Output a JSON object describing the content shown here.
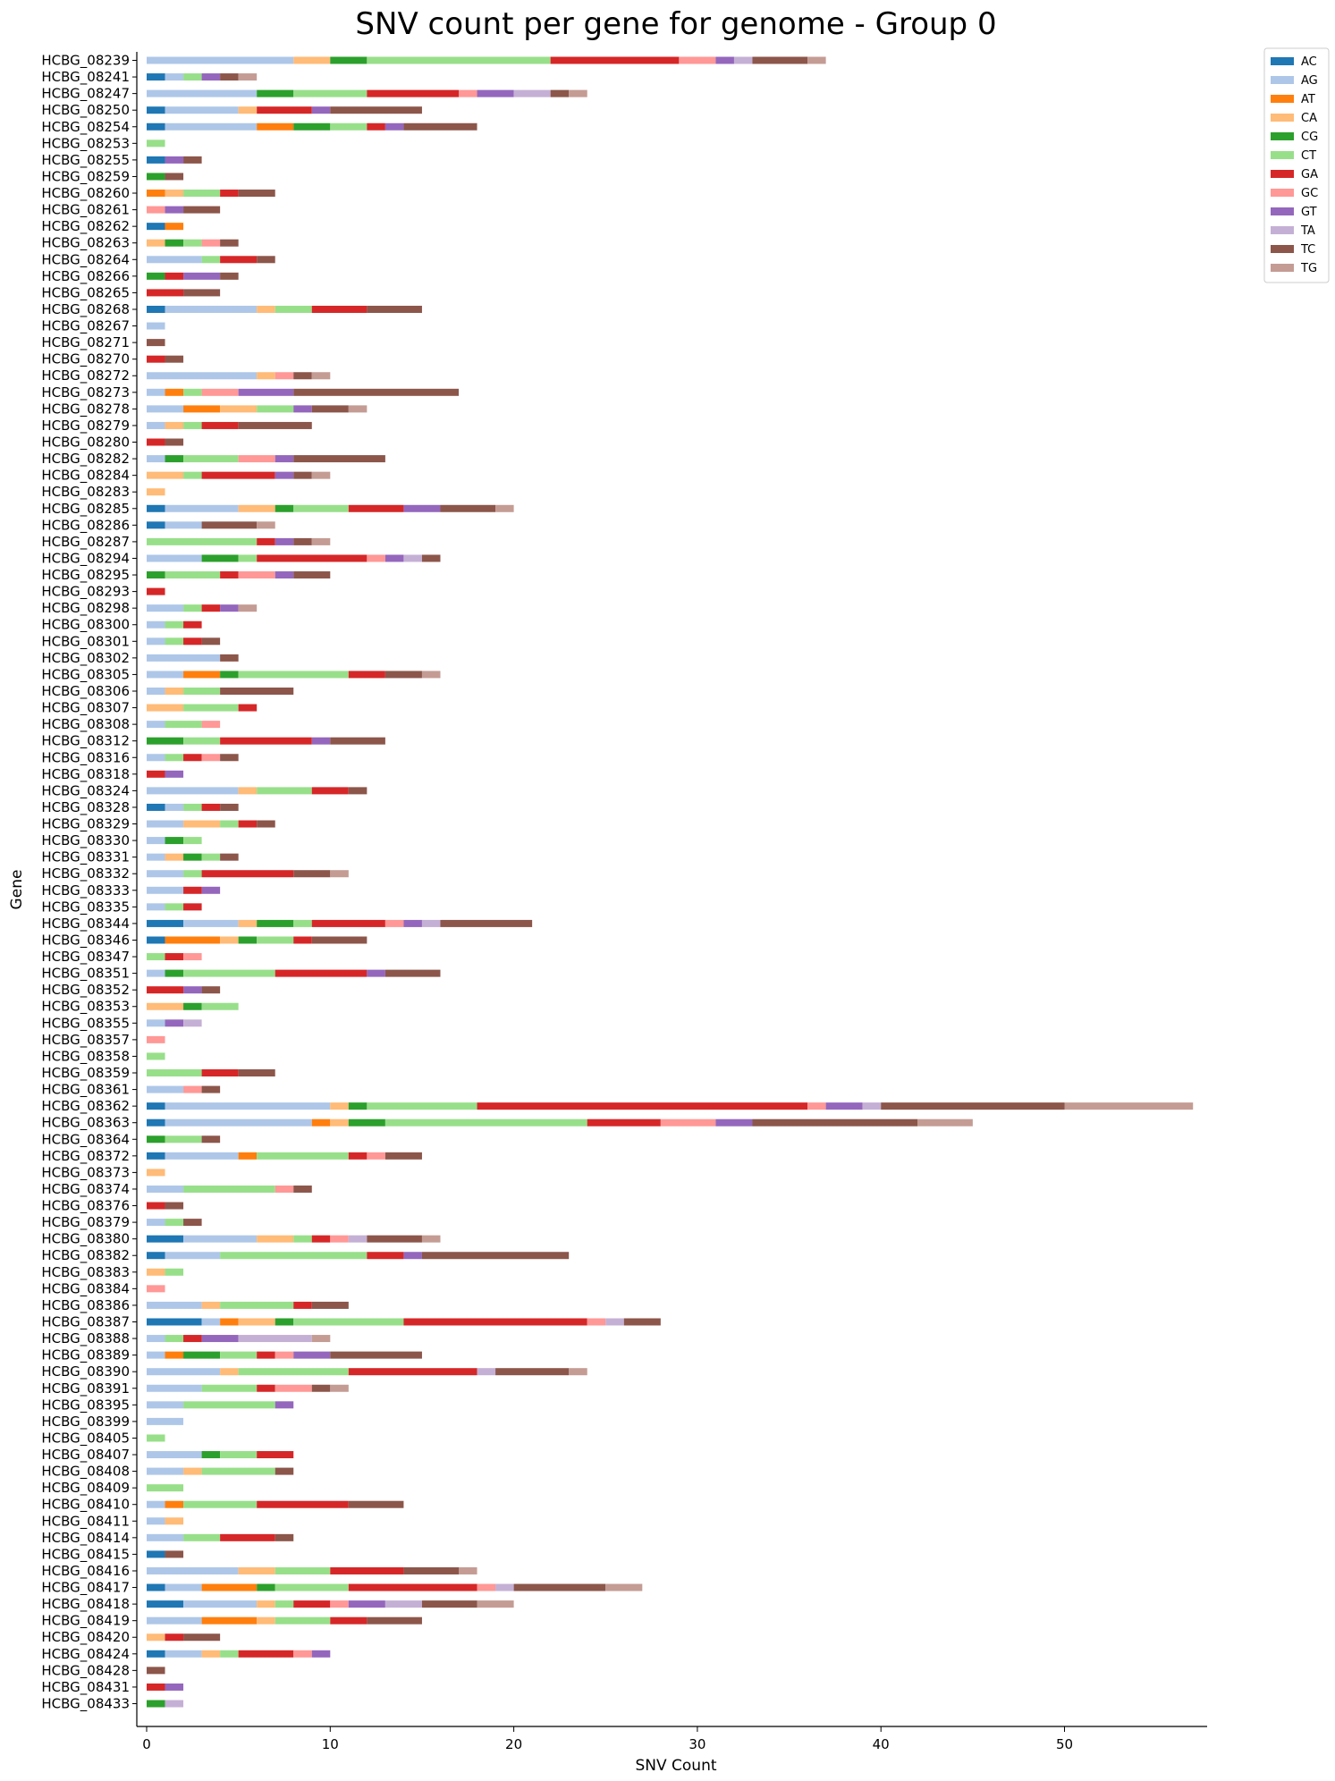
{
  "chart_data": {
    "type": "bar",
    "orientation": "horizontal",
    "stacked": true,
    "title": "SNV count per gene for genome - Group 0",
    "xlabel": "SNV Count",
    "ylabel": "Gene",
    "xlim": [
      0,
      57
    ],
    "xticks": [
      0,
      10,
      20,
      30,
      40,
      50
    ],
    "grid": false,
    "legend_position": "upper-right outside",
    "categories": [
      "HCBG_08239",
      "HCBG_08241",
      "HCBG_08247",
      "HCBG_08250",
      "HCBG_08254",
      "HCBG_08253",
      "HCBG_08255",
      "HCBG_08259",
      "HCBG_08260",
      "HCBG_08261",
      "HCBG_08262",
      "HCBG_08263",
      "HCBG_08264",
      "HCBG_08266",
      "HCBG_08265",
      "HCBG_08268",
      "HCBG_08267",
      "HCBG_08271",
      "HCBG_08270",
      "HCBG_08272",
      "HCBG_08273",
      "HCBG_08278",
      "HCBG_08279",
      "HCBG_08280",
      "HCBG_08282",
      "HCBG_08284",
      "HCBG_08283",
      "HCBG_08285",
      "HCBG_08286",
      "HCBG_08287",
      "HCBG_08294",
      "HCBG_08295",
      "HCBG_08293",
      "HCBG_08298",
      "HCBG_08300",
      "HCBG_08301",
      "HCBG_08302",
      "HCBG_08305",
      "HCBG_08306",
      "HCBG_08307",
      "HCBG_08308",
      "HCBG_08312",
      "HCBG_08316",
      "HCBG_08318",
      "HCBG_08324",
      "HCBG_08328",
      "HCBG_08329",
      "HCBG_08330",
      "HCBG_08331",
      "HCBG_08332",
      "HCBG_08333",
      "HCBG_08335",
      "HCBG_08344",
      "HCBG_08346",
      "HCBG_08347",
      "HCBG_08351",
      "HCBG_08352",
      "HCBG_08353",
      "HCBG_08355",
      "HCBG_08357",
      "HCBG_08358",
      "HCBG_08359",
      "HCBG_08361",
      "HCBG_08362",
      "HCBG_08363",
      "HCBG_08364",
      "HCBG_08372",
      "HCBG_08373",
      "HCBG_08374",
      "HCBG_08376",
      "HCBG_08379",
      "HCBG_08380",
      "HCBG_08382",
      "HCBG_08383",
      "HCBG_08384",
      "HCBG_08386",
      "HCBG_08387",
      "HCBG_08388",
      "HCBG_08389",
      "HCBG_08390",
      "HCBG_08391",
      "HCBG_08395",
      "HCBG_08399",
      "HCBG_08405",
      "HCBG_08407",
      "HCBG_08408",
      "HCBG_08409",
      "HCBG_08410",
      "HCBG_08411",
      "HCBG_08414",
      "HCBG_08415",
      "HCBG_08416",
      "HCBG_08417",
      "HCBG_08418",
      "HCBG_08419",
      "HCBG_08420",
      "HCBG_08424",
      "HCBG_08428",
      "HCBG_08431",
      "HCBG_08433"
    ],
    "series": [
      {
        "name": "AC",
        "color": "#1f77b4",
        "values": [
          0,
          1,
          0,
          1,
          1,
          0,
          1,
          0,
          0,
          0,
          1,
          0,
          0,
          0,
          0,
          1,
          0,
          0,
          0,
          0,
          0,
          0,
          0,
          0,
          0,
          0,
          0,
          1,
          1,
          0,
          0,
          0,
          0,
          0,
          0,
          0,
          0,
          0,
          0,
          0,
          0,
          0,
          0,
          0,
          0,
          1,
          0,
          0,
          0,
          0,
          0,
          0,
          2,
          1,
          0,
          0,
          0,
          0,
          0,
          0,
          0,
          0,
          0,
          1,
          1,
          0,
          1,
          0,
          0,
          0,
          0,
          2,
          1,
          0,
          0,
          0,
          3,
          0,
          0,
          0,
          0,
          0,
          0,
          0,
          0,
          0,
          0,
          0,
          0,
          0,
          1,
          0,
          1,
          2,
          0,
          0,
          1,
          0,
          0,
          0
        ]
      },
      {
        "name": "AG",
        "color": "#aec7e8",
        "values": [
          8,
          1,
          6,
          4,
          5,
          0,
          0,
          0,
          0,
          0,
          0,
          0,
          3,
          0,
          0,
          5,
          1,
          0,
          0,
          6,
          1,
          2,
          1,
          0,
          1,
          0,
          0,
          4,
          2,
          0,
          3,
          0,
          0,
          2,
          1,
          1,
          4,
          2,
          1,
          0,
          1,
          0,
          1,
          0,
          5,
          1,
          2,
          1,
          1,
          2,
          2,
          1,
          3,
          0,
          0,
          1,
          0,
          0,
          1,
          0,
          0,
          0,
          2,
          9,
          8,
          0,
          4,
          0,
          2,
          0,
          1,
          4,
          3,
          0,
          0,
          3,
          1,
          1,
          1,
          4,
          3,
          2,
          2,
          0,
          3,
          2,
          0,
          1,
          1,
          2,
          0,
          5,
          2,
          4,
          3,
          0,
          2,
          0,
          0,
          0
        ]
      },
      {
        "name": "AT",
        "color": "#ff7f0e",
        "values": [
          0,
          0,
          0,
          0,
          2,
          0,
          0,
          0,
          1,
          0,
          1,
          0,
          0,
          0,
          0,
          0,
          0,
          0,
          0,
          0,
          1,
          2,
          0,
          0,
          0,
          0,
          0,
          0,
          0,
          0,
          0,
          0,
          0,
          0,
          0,
          0,
          0,
          2,
          0,
          0,
          0,
          0,
          0,
          0,
          0,
          0,
          0,
          0,
          0,
          0,
          0,
          0,
          0,
          3,
          0,
          0,
          0,
          0,
          0,
          0,
          0,
          0,
          0,
          0,
          1,
          0,
          1,
          0,
          0,
          0,
          0,
          0,
          0,
          0,
          0,
          0,
          1,
          0,
          1,
          0,
          0,
          0,
          0,
          0,
          0,
          0,
          0,
          1,
          0,
          0,
          0,
          0,
          3,
          0,
          3,
          0,
          0,
          0,
          0,
          0
        ]
      },
      {
        "name": "CA",
        "color": "#ffbb78",
        "values": [
          2,
          0,
          0,
          1,
          0,
          0,
          0,
          0,
          1,
          0,
          0,
          1,
          0,
          0,
          0,
          1,
          0,
          0,
          0,
          1,
          0,
          2,
          1,
          0,
          0,
          2,
          1,
          2,
          0,
          0,
          0,
          0,
          0,
          0,
          0,
          0,
          0,
          0,
          1,
          2,
          0,
          0,
          0,
          0,
          1,
          0,
          2,
          0,
          1,
          0,
          0,
          0,
          1,
          1,
          0,
          0,
          0,
          2,
          0,
          0,
          0,
          0,
          0,
          1,
          1,
          0,
          0,
          1,
          0,
          0,
          0,
          2,
          0,
          1,
          0,
          1,
          2,
          0,
          0,
          1,
          0,
          0,
          0,
          0,
          0,
          1,
          0,
          0,
          1,
          0,
          0,
          2,
          0,
          1,
          1,
          1,
          1,
          0,
          0,
          0
        ]
      },
      {
        "name": "CG",
        "color": "#2ca02c",
        "values": [
          2,
          0,
          2,
          0,
          2,
          0,
          0,
          1,
          0,
          0,
          0,
          1,
          0,
          1,
          0,
          0,
          0,
          0,
          0,
          0,
          0,
          0,
          0,
          0,
          1,
          0,
          0,
          1,
          0,
          0,
          2,
          1,
          0,
          0,
          0,
          0,
          0,
          1,
          0,
          0,
          0,
          2,
          0,
          0,
          0,
          0,
          0,
          1,
          1,
          0,
          0,
          0,
          2,
          1,
          0,
          1,
          0,
          1,
          0,
          0,
          0,
          0,
          0,
          1,
          2,
          1,
          0,
          0,
          0,
          0,
          0,
          0,
          0,
          0,
          0,
          0,
          1,
          0,
          2,
          0,
          0,
          0,
          0,
          0,
          1,
          0,
          0,
          0,
          0,
          0,
          0,
          0,
          1,
          0,
          0,
          0,
          0,
          0,
          0,
          1
        ]
      },
      {
        "name": "CT",
        "color": "#98df8a",
        "values": [
          10,
          1,
          4,
          0,
          2,
          1,
          0,
          0,
          2,
          0,
          0,
          1,
          1,
          0,
          0,
          2,
          0,
          0,
          0,
          0,
          1,
          2,
          1,
          0,
          3,
          1,
          0,
          3,
          0,
          6,
          1,
          3,
          0,
          1,
          1,
          1,
          0,
          6,
          2,
          3,
          2,
          2,
          1,
          0,
          3,
          1,
          1,
          1,
          1,
          1,
          0,
          1,
          1,
          2,
          1,
          5,
          0,
          2,
          0,
          0,
          1,
          3,
          0,
          6,
          11,
          2,
          5,
          0,
          5,
          0,
          1,
          1,
          8,
          1,
          0,
          4,
          6,
          1,
          2,
          6,
          3,
          5,
          0,
          1,
          2,
          4,
          2,
          4,
          0,
          2,
          0,
          3,
          4,
          1,
          3,
          0,
          1,
          0,
          0,
          0
        ]
      },
      {
        "name": "GA",
        "color": "#d62728",
        "values": [
          7,
          0,
          5,
          3,
          1,
          0,
          0,
          0,
          1,
          0,
          0,
          0,
          2,
          1,
          2,
          3,
          0,
          0,
          1,
          0,
          0,
          0,
          2,
          1,
          0,
          4,
          0,
          3,
          0,
          1,
          6,
          1,
          1,
          1,
          1,
          1,
          0,
          2,
          0,
          1,
          0,
          5,
          1,
          1,
          2,
          1,
          1,
          0,
          0,
          5,
          1,
          1,
          4,
          1,
          1,
          5,
          2,
          0,
          0,
          0,
          0,
          2,
          0,
          18,
          4,
          0,
          1,
          0,
          0,
          1,
          0,
          1,
          2,
          0,
          0,
          1,
          10,
          1,
          1,
          7,
          1,
          0,
          0,
          0,
          2,
          0,
          0,
          5,
          0,
          3,
          0,
          4,
          7,
          2,
          2,
          1,
          3,
          0,
          1,
          0
        ]
      },
      {
        "name": "GC",
        "color": "#ff9896",
        "values": [
          2,
          0,
          1,
          0,
          0,
          0,
          0,
          0,
          0,
          1,
          0,
          1,
          0,
          0,
          0,
          0,
          0,
          0,
          0,
          1,
          2,
          0,
          0,
          0,
          2,
          0,
          0,
          0,
          0,
          0,
          1,
          2,
          0,
          0,
          0,
          0,
          0,
          0,
          0,
          0,
          1,
          0,
          1,
          0,
          0,
          0,
          0,
          0,
          0,
          0,
          0,
          0,
          1,
          0,
          1,
          0,
          0,
          0,
          0,
          1,
          0,
          0,
          1,
          1,
          3,
          0,
          1,
          0,
          1,
          0,
          0,
          1,
          0,
          0,
          1,
          0,
          1,
          0,
          1,
          0,
          2,
          0,
          0,
          0,
          0,
          0,
          0,
          0,
          0,
          0,
          0,
          0,
          1,
          1,
          0,
          0,
          1,
          0,
          0,
          0
        ]
      },
      {
        "name": "GT",
        "color": "#9467bd",
        "values": [
          1,
          1,
          2,
          1,
          1,
          0,
          1,
          0,
          0,
          1,
          0,
          0,
          0,
          2,
          0,
          0,
          0,
          0,
          0,
          0,
          3,
          1,
          0,
          0,
          1,
          1,
          0,
          2,
          0,
          1,
          1,
          1,
          0,
          1,
          0,
          0,
          0,
          0,
          0,
          0,
          0,
          1,
          0,
          1,
          0,
          0,
          0,
          0,
          0,
          0,
          1,
          0,
          1,
          0,
          0,
          1,
          1,
          0,
          1,
          0,
          0,
          0,
          0,
          2,
          2,
          0,
          0,
          0,
          0,
          0,
          0,
          0,
          1,
          0,
          0,
          0,
          0,
          2,
          2,
          0,
          0,
          1,
          0,
          0,
          0,
          0,
          0,
          0,
          0,
          0,
          0,
          0,
          0,
          2,
          0,
          0,
          1,
          0,
          1,
          0
        ]
      },
      {
        "name": "TA",
        "color": "#c5b0d5",
        "values": [
          1,
          0,
          2,
          0,
          0,
          0,
          0,
          0,
          0,
          0,
          0,
          0,
          0,
          0,
          0,
          0,
          0,
          0,
          0,
          0,
          0,
          0,
          0,
          0,
          0,
          0,
          0,
          0,
          0,
          0,
          1,
          0,
          0,
          0,
          0,
          0,
          0,
          0,
          0,
          0,
          0,
          0,
          0,
          0,
          0,
          0,
          0,
          0,
          0,
          0,
          0,
          0,
          1,
          0,
          0,
          0,
          0,
          0,
          1,
          0,
          0,
          0,
          0,
          1,
          0,
          0,
          0,
          0,
          0,
          0,
          0,
          1,
          0,
          0,
          0,
          0,
          1,
          4,
          0,
          1,
          0,
          0,
          0,
          0,
          0,
          0,
          0,
          0,
          0,
          0,
          0,
          0,
          1,
          2,
          0,
          0,
          0,
          0,
          0,
          1
        ]
      },
      {
        "name": "TC",
        "color": "#8c564b",
        "values": [
          3,
          1,
          1,
          5,
          4,
          0,
          1,
          1,
          2,
          2,
          0,
          1,
          1,
          1,
          2,
          3,
          0,
          1,
          1,
          1,
          9,
          2,
          4,
          1,
          5,
          1,
          0,
          3,
          3,
          1,
          1,
          2,
          0,
          0,
          0,
          1,
          1,
          2,
          4,
          0,
          0,
          3,
          1,
          0,
          1,
          1,
          1,
          0,
          1,
          2,
          0,
          0,
          5,
          3,
          0,
          3,
          1,
          0,
          0,
          0,
          0,
          2,
          1,
          10,
          9,
          1,
          2,
          0,
          1,
          1,
          1,
          3,
          8,
          0,
          0,
          2,
          2,
          0,
          5,
          4,
          1,
          0,
          0,
          0,
          0,
          1,
          0,
          3,
          0,
          1,
          1,
          3,
          5,
          3,
          3,
          2,
          0,
          1,
          0,
          0
        ]
      },
      {
        "name": "TG",
        "color": "#c49c94",
        "values": [
          1,
          1,
          1,
          0,
          0,
          0,
          0,
          0,
          0,
          0,
          0,
          0,
          0,
          0,
          0,
          0,
          0,
          0,
          0,
          1,
          0,
          1,
          0,
          0,
          0,
          1,
          0,
          1,
          1,
          1,
          0,
          0,
          0,
          1,
          0,
          0,
          0,
          1,
          0,
          0,
          0,
          0,
          0,
          0,
          0,
          0,
          0,
          0,
          0,
          1,
          0,
          0,
          0,
          0,
          0,
          0,
          0,
          0,
          0,
          0,
          0,
          0,
          0,
          7,
          3,
          0,
          0,
          0,
          0,
          0,
          0,
          1,
          0,
          0,
          0,
          0,
          0,
          1,
          0,
          1,
          1,
          0,
          0,
          0,
          0,
          0,
          0,
          0,
          0,
          0,
          0,
          1,
          2,
          2,
          0,
          0,
          0,
          0,
          0,
          0
        ]
      }
    ]
  }
}
